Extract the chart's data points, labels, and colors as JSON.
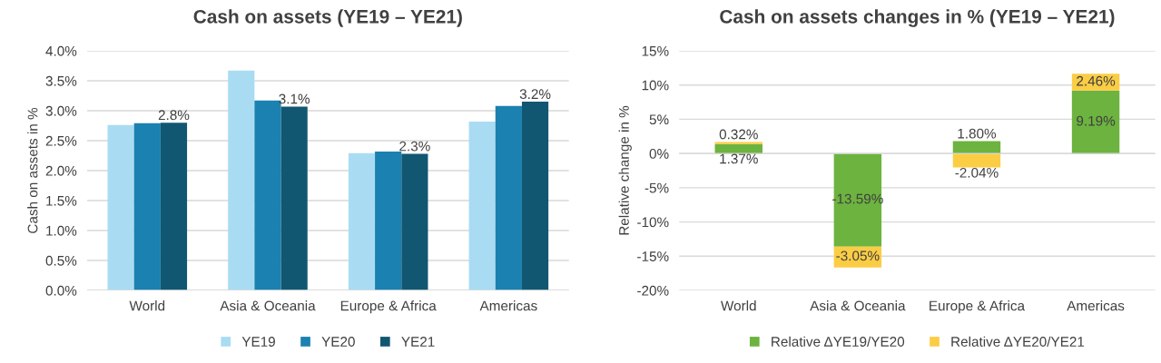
{
  "chart_data": [
    {
      "type": "bar",
      "title": "Cash on assets (YE19 – YE21)",
      "ylabel": "Cash on assets in %",
      "categories": [
        "World",
        "Asia & Oceania",
        "Europe & Africa",
        "Americas"
      ],
      "series": [
        {
          "name": "YE19",
          "color": "#a9dcf3",
          "values": [
            2.76,
            3.67,
            2.29,
            2.82
          ]
        },
        {
          "name": "YE20",
          "color": "#1a81b0",
          "values": [
            2.79,
            3.17,
            2.32,
            3.08
          ]
        },
        {
          "name": "YE21",
          "color": "#125772",
          "values": [
            2.8,
            3.07,
            2.28,
            3.15
          ],
          "value_labels": [
            "2.8%",
            "3.1%",
            "2.3%",
            "3.2%"
          ]
        }
      ],
      "ylim": [
        0,
        4
      ],
      "yticks": [
        {
          "value": 0,
          "label": "0.0%"
        },
        {
          "value": 0.5,
          "label": "0.5%"
        },
        {
          "value": 1,
          "label": "1.0%"
        },
        {
          "value": 1.5,
          "label": "1.5%"
        },
        {
          "value": 2,
          "label": "2.0%"
        },
        {
          "value": 2.5,
          "label": "2.5%"
        },
        {
          "value": 3,
          "label": "3.0%"
        },
        {
          "value": 3.5,
          "label": "3.5%"
        },
        {
          "value": 4,
          "label": "4.0%"
        }
      ],
      "grid": "y",
      "legend": "bottom"
    },
    {
      "type": "bar",
      "stacked": true,
      "title": "Cash on assets changes in % (YE19 – YE21)",
      "ylabel": "Relative change in %",
      "categories": [
        "World",
        "Asia & Oceania",
        "Europe & Africa",
        "Americas"
      ],
      "series": [
        {
          "name": "Relative ΔYE19/YE20",
          "color": "#6db33f",
          "values": [
            1.37,
            -13.59,
            1.8,
            9.19
          ],
          "value_labels": [
            "1.37%",
            "-13.59%",
            "1.80%",
            "9.19%"
          ]
        },
        {
          "name": "Relative ΔYE20/YE21",
          "color": "#fbcd45",
          "values": [
            0.32,
            -3.05,
            -2.04,
            2.46
          ],
          "value_labels": [
            "0.32%",
            "-3.05%",
            "-2.04%",
            "2.46%"
          ]
        }
      ],
      "ylim": [
        -20,
        15
      ],
      "yticks": [
        {
          "value": -20,
          "label": "-20%"
        },
        {
          "value": -15,
          "label": "-15%"
        },
        {
          "value": -10,
          "label": "-10%"
        },
        {
          "value": -5,
          "label": "-5%"
        },
        {
          "value": 0,
          "label": "0%"
        },
        {
          "value": 5,
          "label": "5%"
        },
        {
          "value": 10,
          "label": "10%"
        },
        {
          "value": 15,
          "label": "15%"
        }
      ],
      "grid": "y",
      "legend": "bottom"
    }
  ]
}
